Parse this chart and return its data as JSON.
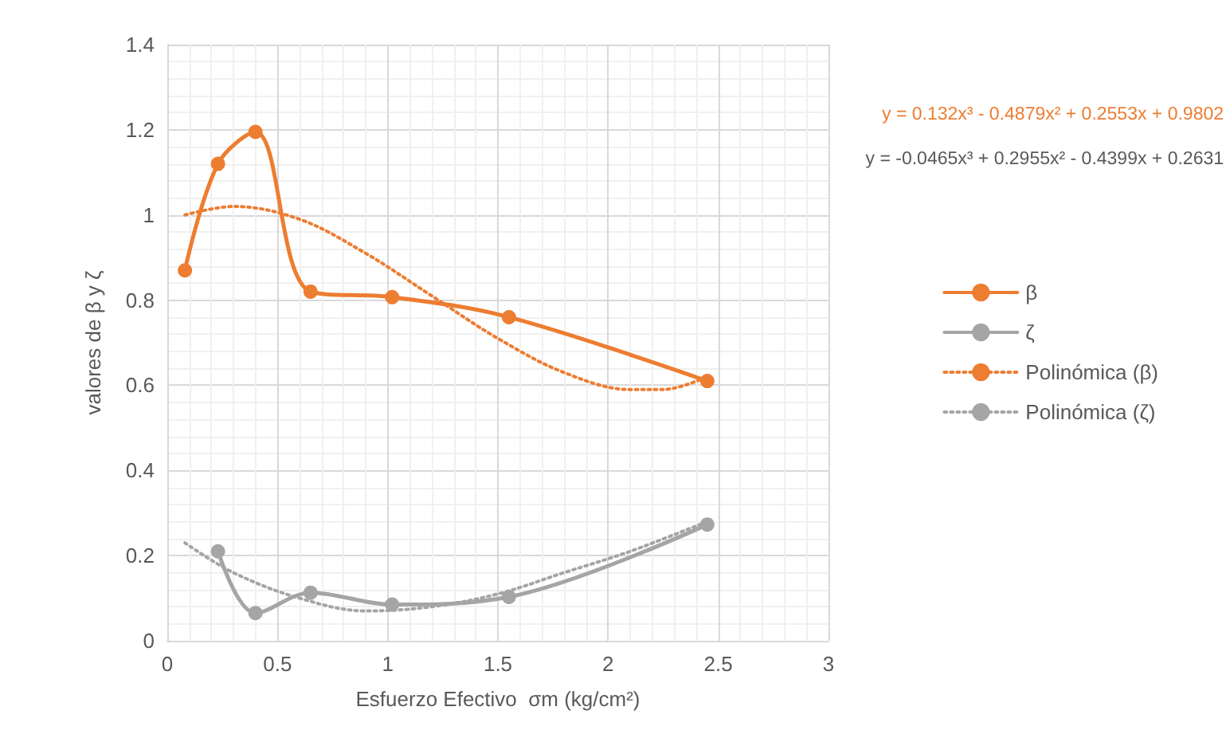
{
  "chart_data": {
    "type": "line",
    "xlabel": "Esfuerzo Efectivo  σm (kg/cm²)",
    "ylabel": "valores de β y ζ",
    "xlim": [
      0,
      3
    ],
    "xticks": [
      0,
      0.5,
      1,
      1.5,
      2,
      2.5,
      3
    ],
    "ylim": [
      0,
      1.4
    ],
    "yticks": [
      0,
      0.2,
      0.4,
      0.6,
      0.8,
      1,
      1.2,
      1.4
    ],
    "grid": true,
    "legend": "right",
    "annotations": [
      "y = 0.132x³ - 0.4879x² + 0.2553x + 0.9802",
      "y = -0.0465x³ + 0.2955x² - 0.4399x + 0.2631"
    ],
    "series": [
      {
        "name": "β",
        "color": "#ed7d31",
        "marker": "circle",
        "line_style": "solid",
        "x": [
          0.08,
          0.23,
          0.4,
          0.65,
          1.02,
          1.55,
          2.45
        ],
        "values": [
          0.87,
          1.12,
          1.195,
          0.82,
          0.807,
          0.76,
          0.61
        ]
      },
      {
        "name": "ζ",
        "color": "#a5a5a5",
        "marker": "circle",
        "line_style": "solid",
        "x": [
          0.23,
          0.4,
          0.65,
          1.02,
          1.55,
          2.45
        ],
        "values": [
          0.21,
          0.065,
          0.113,
          0.085,
          0.103,
          0.273
        ]
      },
      {
        "name": "Polinómica (β)",
        "color": "#ed7d31",
        "marker": "none",
        "line_style": "dotted",
        "x": [
          0.08,
          0.3,
          0.6,
          0.9,
          1.2,
          1.5,
          1.8,
          2.1,
          2.25,
          2.45
        ],
        "values": [
          1.0,
          1.02,
          0.99,
          0.91,
          0.81,
          0.71,
          0.63,
          0.59,
          0.59,
          0.62
        ]
      },
      {
        "name": "Polinómica (ζ)",
        "color": "#a5a5a5",
        "marker": "none",
        "line_style": "dotted",
        "x": [
          0.08,
          0.3,
          0.6,
          0.9,
          1.2,
          1.5,
          1.8,
          2.1,
          2.45
        ],
        "values": [
          0.23,
          0.16,
          0.1,
          0.07,
          0.08,
          0.11,
          0.16,
          0.21,
          0.28
        ]
      }
    ]
  }
}
